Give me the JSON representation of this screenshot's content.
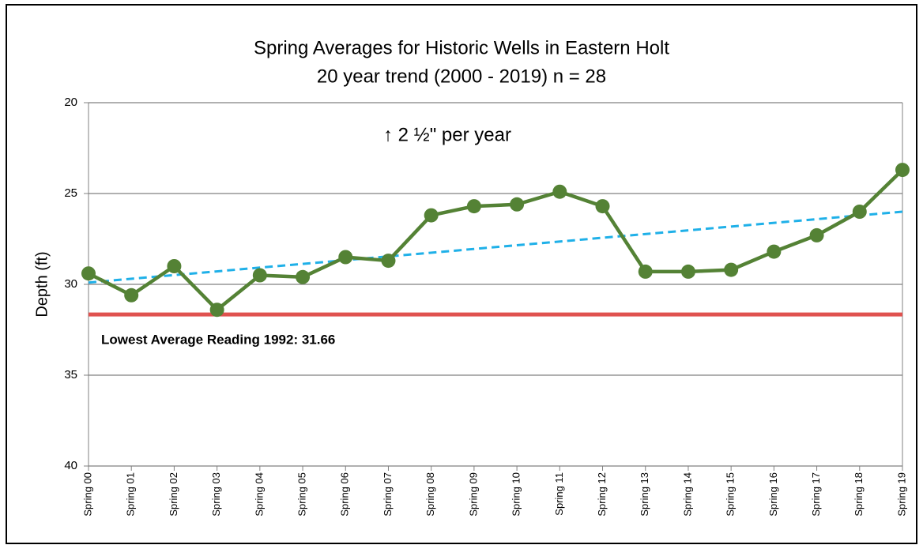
{
  "chart_data": {
    "type": "line",
    "title": "Spring Averages for Historic Wells in Eastern Holt",
    "subtitle": "20 year trend (2000 - 2019)  n = 28",
    "y_label": "Depth (ft)",
    "categories": [
      "Spring 00",
      "Spring 01",
      "Spring 02",
      "Spring 03",
      "Spring 04",
      "Spring 05",
      "Spring 06",
      "Spring 07",
      "Spring 08",
      "Spring 09",
      "Spring 10",
      "Spring 11",
      "Spring 12",
      "Spring 13",
      "Spring 14",
      "Spring 15",
      "Spring 16",
      "Spring 17",
      "Spring 18",
      "Spring 19"
    ],
    "series": [
      {
        "color": "#548235",
        "values": [
          29.4,
          30.6,
          29.0,
          31.4,
          29.5,
          29.6,
          28.5,
          28.7,
          26.2,
          25.7,
          25.6,
          24.9,
          25.7,
          29.3,
          29.3,
          29.2,
          28.2,
          27.3,
          26.0,
          23.7
        ]
      }
    ],
    "trendline": {
      "values": [
        29.9,
        26.0
      ],
      "color": "#1fb0e8",
      "label": "↑ 2 ½\" per year"
    },
    "reference_line": {
      "value": 31.66,
      "color": "#e0524f",
      "label": "Lowest Average Reading 1992: 31.66"
    },
    "ylim": [
      20,
      40
    ],
    "yticks": [
      20,
      25,
      30,
      35,
      40
    ],
    "y_inverted": true,
    "grid": true
  }
}
